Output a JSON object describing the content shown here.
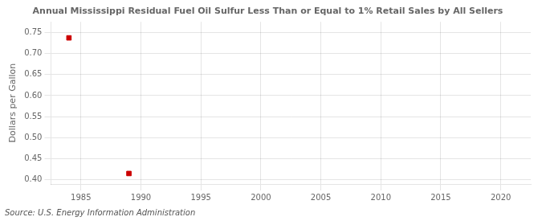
{
  "chart_data": {
    "type": "scatter",
    "title": "Annual Mississippi Residual Fuel Oil Sulfur Less Than or Equal to 1% Retail Sales by All Sellers",
    "y_label": "Dollars per Gallon",
    "annotations": [
      "Source: U.S. Energy Information Administration"
    ],
    "x": [
      1984,
      1989
    ],
    "values": [
      0.737,
      0.415
    ],
    "color": "#cc0000",
    "marker": "square",
    "xlim": [
      1982.5,
      2022.5
    ],
    "xticks": [
      1985,
      1990,
      1995,
      2000,
      2005,
      2010,
      2015,
      2020
    ],
    "ylim": [
      0.39,
      0.775
    ],
    "yticks": [
      {
        "value": 0.4,
        "label": "0.40"
      },
      {
        "value": 0.45,
        "label": "0.45"
      },
      {
        "value": 0.5,
        "label": "0.50"
      },
      {
        "value": 0.55,
        "label": "0.55"
      },
      {
        "value": 0.6,
        "label": "0.60"
      },
      {
        "value": 0.65,
        "label": "0.65"
      },
      {
        "value": 0.7,
        "label": "0.70"
      },
      {
        "value": 0.75,
        "label": "0.75"
      }
    ],
    "grid": true
  }
}
